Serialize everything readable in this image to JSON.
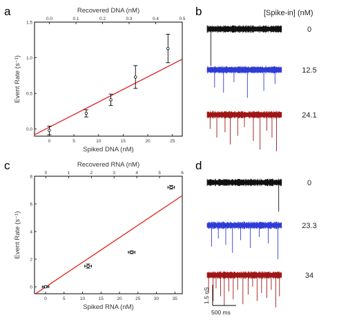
{
  "panels": {
    "a": "a",
    "b": "b",
    "c": "c",
    "d": "d"
  },
  "spike_header": "[Spike-in]  (nM)",
  "chart_data": [
    {
      "type": "scatter",
      "panel": "a",
      "xlabel": "Spiked DNA (nM)",
      "ylabel": "Event Rate (s⁻¹)",
      "x2label": "Recovered DNA (nM)",
      "xlim": [
        -3,
        27
      ],
      "ylim": [
        -0.1,
        1.5
      ],
      "x2lim": [
        -0.056,
        0.5
      ],
      "xticks": [
        0,
        5,
        10,
        15,
        20,
        25
      ],
      "xtick_labels": [
        "0",
        "5",
        "10",
        "15",
        "20",
        "25"
      ],
      "yticks": [
        0,
        0.5,
        1.0,
        1.5
      ],
      "ytick_labels": [
        "0.0",
        "0.5",
        "1.0",
        "1.5"
      ],
      "x2ticks": [
        0,
        0.1,
        0.2,
        0.3,
        0.4,
        0.5
      ],
      "x2tick_labels": [
        "0.0",
        "0.1",
        "0.2",
        "0.3",
        "0.4",
        "0.5"
      ],
      "points": [
        {
          "x": 0,
          "y": -0.02,
          "err": 0.06
        },
        {
          "x": 7.5,
          "y": 0.22,
          "err": 0.05
        },
        {
          "x": 12.5,
          "y": 0.41,
          "err": 0.08
        },
        {
          "x": 17.5,
          "y": 0.73,
          "err": 0.16
        },
        {
          "x": 24.1,
          "y": 1.13,
          "err": 0.2
        }
      ],
      "fit_line": {
        "x": [
          -3,
          27
        ],
        "y": [
          -0.08,
          0.98
        ],
        "color": "#e02020"
      },
      "grid": false
    },
    {
      "type": "scatter",
      "panel": "c",
      "xlabel": "Spiked RNA (nM)",
      "ylabel": "Event Rate (s⁻¹)",
      "x2label": "Recovered RNA (nM)",
      "xlim": [
        -3,
        37
      ],
      "ylim": [
        -0.5,
        8
      ],
      "x2lim": [
        -0.5,
        6
      ],
      "xticks": [
        0,
        5,
        10,
        15,
        20,
        25,
        30,
        35
      ],
      "xtick_labels": [
        "0",
        "5",
        "10",
        "15",
        "20",
        "25",
        "30",
        "35"
      ],
      "yticks": [
        0,
        2,
        4,
        6,
        8
      ],
      "ytick_labels": [
        "0",
        "2",
        "4",
        "6",
        "8"
      ],
      "x2ticks": [
        0,
        1,
        2,
        3,
        4,
        5,
        6
      ],
      "x2tick_labels": [
        "0",
        "1",
        "2",
        "3",
        "4",
        "5",
        "6"
      ],
      "points": [
        {
          "x": 0,
          "y": 0,
          "err": 0.06,
          "xerr": 0.9
        },
        {
          "x": 11.5,
          "y": 1.5,
          "err": 0.15,
          "xerr": 0.9
        },
        {
          "x": 23.3,
          "y": 2.5,
          "err": 0.1,
          "xerr": 0.9
        },
        {
          "x": 34,
          "y": 7.2,
          "err": 0.12,
          "xerr": 0.9
        }
      ],
      "fit_line": {
        "x": [
          -3,
          37
        ],
        "y": [
          -0.55,
          6.6
        ],
        "color": "#e02020"
      },
      "grid": false
    }
  ],
  "traces": {
    "b": [
      {
        "label": "0",
        "color": "#111111",
        "spikes": [
          {
            "pos": 0.05,
            "depth": 1.0
          }
        ]
      },
      {
        "label": "12.5",
        "color": "#2f3bd6",
        "spikes": [
          {
            "pos": 0.1,
            "depth": 0.45
          },
          {
            "pos": 0.22,
            "depth": 0.6
          },
          {
            "pos": 0.36,
            "depth": 0.3
          },
          {
            "pos": 0.54,
            "depth": 0.75
          },
          {
            "pos": 0.76,
            "depth": 0.55
          },
          {
            "pos": 0.91,
            "depth": 0.35
          }
        ]
      },
      {
        "label": "24.1",
        "color": "#a01515",
        "spikes": [
          {
            "pos": 0.04,
            "depth": 0.35
          },
          {
            "pos": 0.13,
            "depth": 0.6
          },
          {
            "pos": 0.24,
            "depth": 0.45
          },
          {
            "pos": 0.31,
            "depth": 0.8
          },
          {
            "pos": 0.41,
            "depth": 0.55
          },
          {
            "pos": 0.5,
            "depth": 0.3
          },
          {
            "pos": 0.62,
            "depth": 0.7
          },
          {
            "pos": 0.71,
            "depth": 0.95
          },
          {
            "pos": 0.8,
            "depth": 0.4
          },
          {
            "pos": 0.87,
            "depth": 0.6
          },
          {
            "pos": 0.93,
            "depth": 1.0
          }
        ]
      }
    ],
    "d": [
      {
        "label": "0",
        "color": "#111111",
        "spikes": [
          {
            "pos": 0.96,
            "depth": 0.85
          }
        ]
      },
      {
        "label": "23.3",
        "color": "#2f3bd6",
        "spikes": [
          {
            "pos": 0.06,
            "depth": 0.6
          },
          {
            "pos": 0.15,
            "depth": 0.35
          },
          {
            "pos": 0.25,
            "depth": 0.55
          },
          {
            "pos": 0.34,
            "depth": 0.8
          },
          {
            "pos": 0.45,
            "depth": 0.4
          },
          {
            "pos": 0.58,
            "depth": 0.65
          },
          {
            "pos": 0.7,
            "depth": 0.3
          },
          {
            "pos": 0.82,
            "depth": 0.5
          },
          {
            "pos": 0.95,
            "depth": 1.0
          }
        ]
      },
      {
        "label": "34",
        "color": "#a01515",
        "spikes": [
          {
            "pos": 0.02,
            "depth": 0.5
          },
          {
            "pos": 0.08,
            "depth": 0.75
          },
          {
            "pos": 0.12,
            "depth": 0.35
          },
          {
            "pos": 0.18,
            "depth": 0.6
          },
          {
            "pos": 0.23,
            "depth": 0.9
          },
          {
            "pos": 0.29,
            "depth": 0.45
          },
          {
            "pos": 0.35,
            "depth": 0.7
          },
          {
            "pos": 0.41,
            "depth": 0.4
          },
          {
            "pos": 0.48,
            "depth": 0.85
          },
          {
            "pos": 0.55,
            "depth": 0.55
          },
          {
            "pos": 0.61,
            "depth": 0.3
          },
          {
            "pos": 0.67,
            "depth": 0.75
          },
          {
            "pos": 0.73,
            "depth": 0.5
          },
          {
            "pos": 0.8,
            "depth": 0.65
          },
          {
            "pos": 0.86,
            "depth": 0.4
          },
          {
            "pos": 0.92,
            "depth": 0.95
          },
          {
            "pos": 0.97,
            "depth": 0.6
          }
        ]
      }
    ]
  },
  "scale_bar": {
    "current": "1.5 nS",
    "time": "500 ms"
  }
}
